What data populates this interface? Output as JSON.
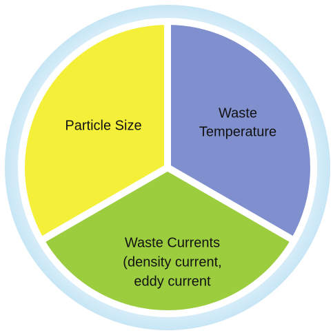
{
  "segments": [
    {
      "lines": [
        "Particle Size"
      ]
    },
    {
      "lines": [
        "Waste",
        "Temperature"
      ]
    },
    {
      "lines": [
        "Waste Currents",
        "(density current,",
        "eddy current"
      ]
    }
  ]
}
